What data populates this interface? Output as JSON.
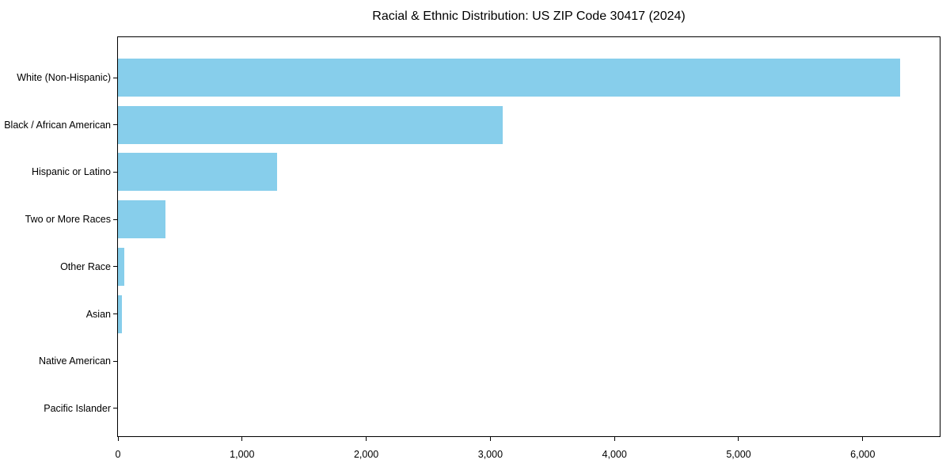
{
  "title": "Racial & Ethnic Distribution: US ZIP Code 30417 (2024)",
  "chart_data": {
    "type": "bar",
    "orientation": "horizontal",
    "title": "Racial & Ethnic Distribution: US ZIP Code 30417 (2024)",
    "xlabel": "",
    "ylabel": "",
    "categories": [
      "White (Non-Hispanic)",
      "Black / African American",
      "Hispanic or Latino",
      "Two or More Races",
      "Other Race",
      "Asian",
      "Native American",
      "Pacific Islander"
    ],
    "values": [
      6300,
      3100,
      1280,
      380,
      50,
      30,
      0,
      0
    ],
    "xlim": [
      0,
      6620
    ],
    "x_ticks": [
      0,
      1000,
      2000,
      3000,
      4000,
      5000,
      6000
    ],
    "x_tick_labels": [
      "0",
      "1,000",
      "2,000",
      "3,000",
      "4,000",
      "5,000",
      "6,000"
    ],
    "bar_color": "#87CEEB",
    "grid": false,
    "legend": null
  },
  "colors": {
    "bar": "#87CEEB",
    "axis": "#000000",
    "text": "#000000",
    "background": "#ffffff"
  }
}
